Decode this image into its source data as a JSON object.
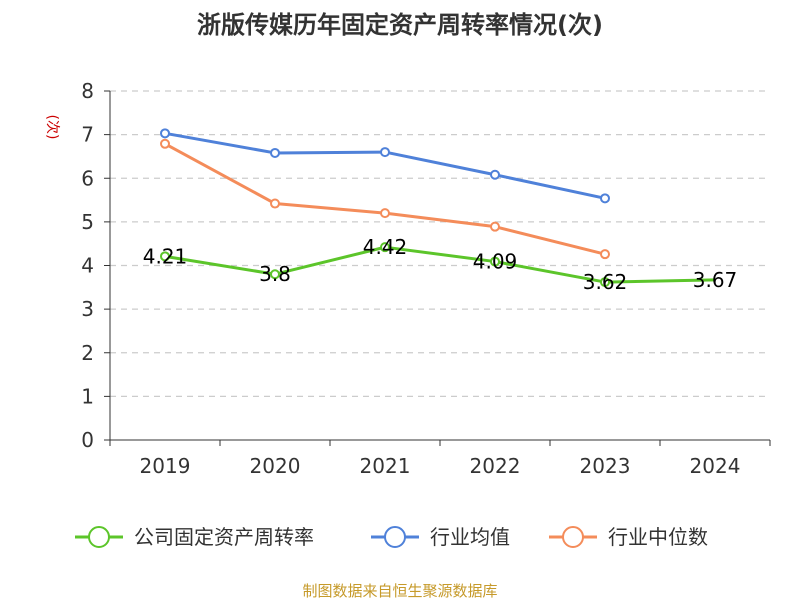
{
  "chart_data": {
    "type": "line",
    "title": "浙版传媒历年固定资产周转率情况(次)",
    "ylabel": "(次)",
    "categories": [
      "2019",
      "2020",
      "2021",
      "2022",
      "2023",
      "2024"
    ],
    "ylim": [
      0,
      8
    ],
    "yticks": [
      0,
      1,
      2,
      3,
      4,
      5,
      6,
      7,
      8
    ],
    "grid": true,
    "legend_position": "bottom",
    "series": [
      {
        "name": "公司固定资产周转率",
        "color": "#5cc52a",
        "values": [
          4.21,
          3.8,
          4.42,
          4.09,
          3.62,
          3.67
        ],
        "labels": [
          "4.21",
          "3.8",
          "4.42",
          "4.09",
          "3.62",
          "3.67"
        ]
      },
      {
        "name": "行业均值",
        "color": "#4f81d9",
        "values": [
          7.03,
          6.58,
          6.6,
          6.08,
          5.54,
          null
        ]
      },
      {
        "name": "行业中位数",
        "color": "#f48c5a",
        "values": [
          6.79,
          5.42,
          5.2,
          4.89,
          4.26,
          null
        ]
      }
    ]
  },
  "colors": {
    "ylabel": "#cc0000",
    "source": "#c69a2a",
    "axis": "#333333",
    "grid": "#cccccc"
  },
  "footer": {
    "source": "制图数据来自恒生聚源数据库"
  }
}
